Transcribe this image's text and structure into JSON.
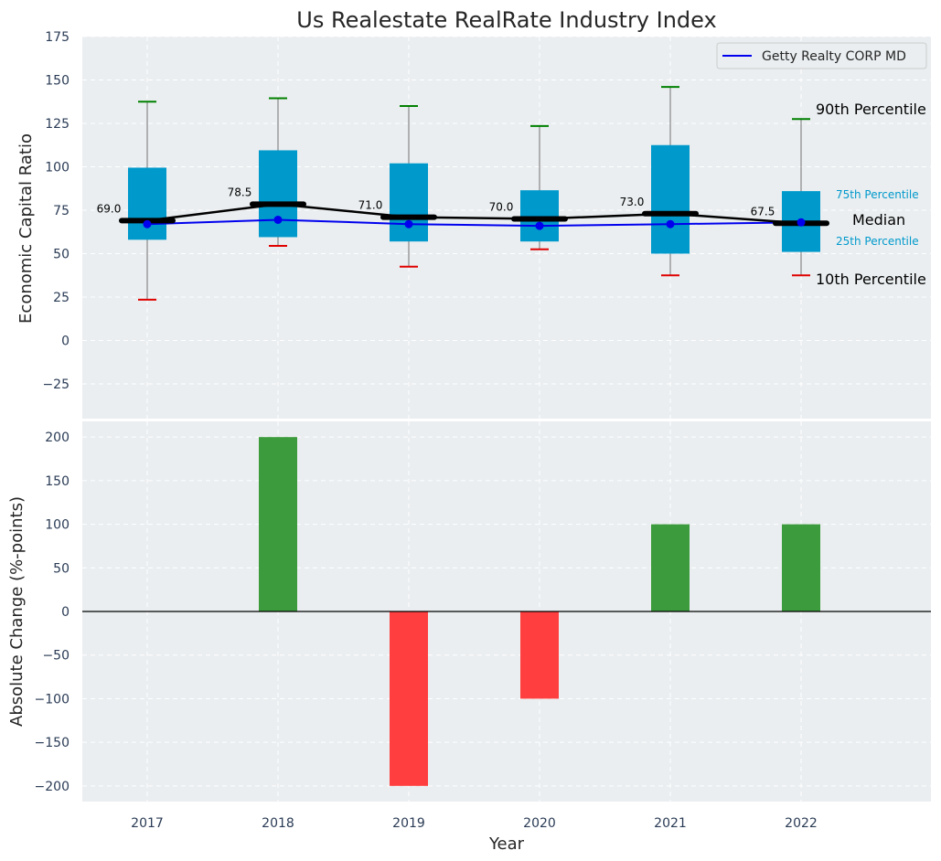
{
  "chart_data": [
    {
      "type": "box",
      "title": "Us Realestate RealRate Industry Index",
      "ylabel": "Economic Capital Ratio",
      "ylim": [
        -45,
        175
      ],
      "yticks": [
        -25,
        0,
        25,
        50,
        75,
        100,
        125,
        150,
        175
      ],
      "categories": [
        "2017",
        "2018",
        "2019",
        "2020",
        "2021",
        "2022"
      ],
      "grid": true,
      "legend_position": "top-right",
      "boxes": {
        "p10": [
          23.5,
          54.5,
          42.5,
          52.5,
          37.5,
          37.5
        ],
        "p25": [
          58,
          59.5,
          57,
          57,
          50,
          51
        ],
        "median": [
          69.0,
          78.5,
          71.0,
          70.0,
          73.0,
          67.5
        ],
        "p75": [
          99.5,
          109.5,
          102,
          86.5,
          112.5,
          86
        ],
        "p90": [
          137.5,
          139.5,
          135,
          123.5,
          146,
          127.5
        ]
      },
      "median_labels": [
        "69.0",
        "78.5",
        "71.0",
        "70.0",
        "73.0",
        "67.5"
      ],
      "series": [
        {
          "name": "Getty Realty CORP MD",
          "values": [
            67,
            69.5,
            67,
            66,
            67,
            68
          ]
        }
      ],
      "annotations": {
        "p90": "90th Percentile",
        "p75": "75th Percentile",
        "median": "Median",
        "p25": "25th Percentile",
        "p10": "10th Percentile"
      },
      "colors": {
        "box": "#0099cc",
        "company": "#0000ee",
        "median": "#000000",
        "p90_cap": "#008000",
        "p10_cap": "#e00000"
      }
    },
    {
      "type": "bar",
      "ylabel": "Absolute Change (%-points)",
      "xlabel": "Year",
      "ylim": [
        -218,
        218
      ],
      "yticks": [
        -200,
        -150,
        -100,
        -50,
        0,
        50,
        100,
        150,
        200
      ],
      "categories": [
        "2017",
        "2018",
        "2019",
        "2020",
        "2021",
        "2022"
      ],
      "values": [
        0,
        200,
        -200,
        -100,
        100,
        100
      ],
      "grid": true,
      "colors": {
        "positive": "#3c9b3c",
        "negative": "#ff3f3f"
      }
    }
  ]
}
